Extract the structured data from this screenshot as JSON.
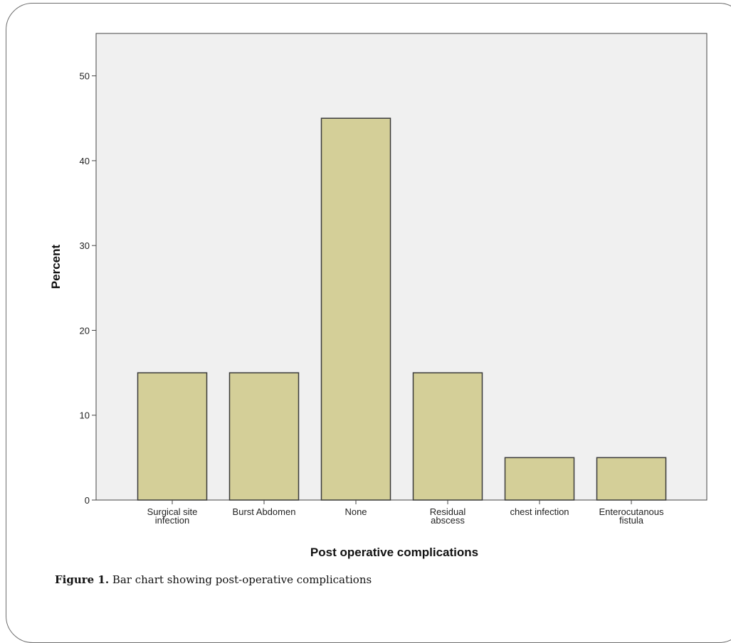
{
  "chart_data": {
    "type": "bar",
    "categories": [
      [
        "Surgical site",
        "infection"
      ],
      [
        "Burst Abdomen"
      ],
      [
        "None"
      ],
      [
        "Residual",
        "abscess"
      ],
      [
        "chest infection"
      ],
      [
        "Enterocutanous",
        "fistula"
      ]
    ],
    "values": [
      15,
      15,
      45,
      15,
      5,
      5
    ],
    "xlabel": "Post operative complications",
    "ylabel": "Percent",
    "ylim": [
      0,
      55
    ],
    "yticks": [
      0,
      10,
      20,
      30,
      40,
      50
    ],
    "grid": false,
    "colors": {
      "bar": "#d4cf98",
      "bar_edge": "#3a3a3a",
      "plot_bg": "#f0f0f0"
    }
  },
  "caption": {
    "label": "Figure 1.",
    "text": " Bar chart showing post-operative complications"
  }
}
